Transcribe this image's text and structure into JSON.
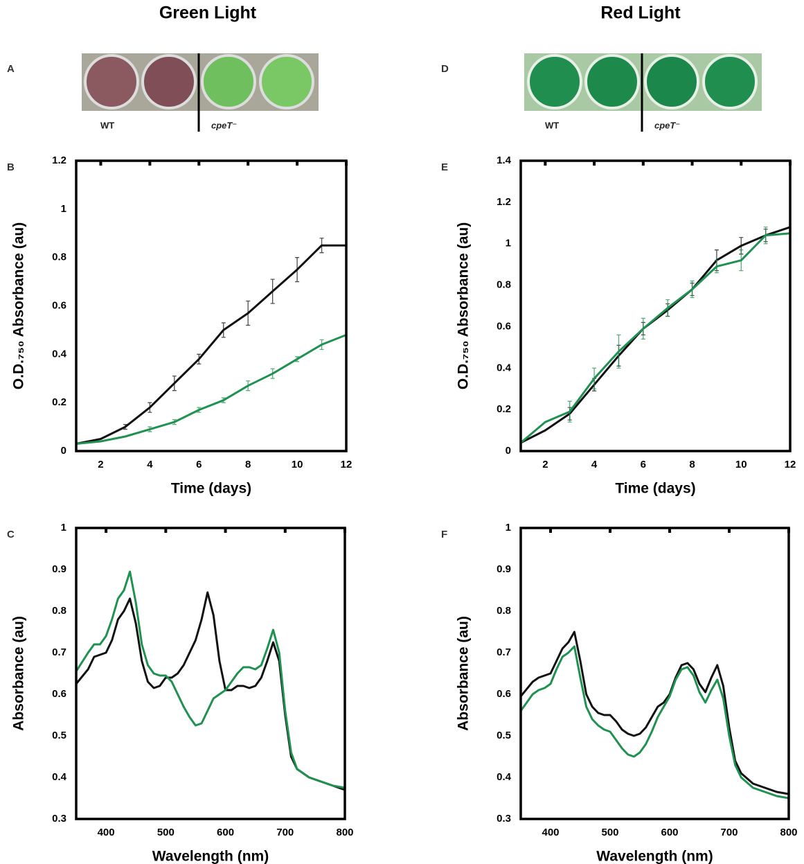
{
  "figure": {
    "columns": [
      "Green Light",
      "Red Light"
    ],
    "panels": [
      "A",
      "B",
      "C",
      "D",
      "E",
      "F"
    ],
    "photos": [
      {
        "labels": [
          "WT",
          "cpeT⁻"
        ]
      },
      {
        "labels": [
          "WT",
          "cpeT⁻"
        ]
      }
    ]
  },
  "chart_data": [
    {
      "type": "line",
      "xlabel": "Time (days)",
      "ylabel": "O.D.₇₅₀ Absorbance (au)",
      "x": [
        1,
        2,
        3,
        4,
        5,
        6,
        7,
        8,
        9,
        10,
        11,
        12
      ],
      "series": [
        {
          "color": "#111111",
          "values": [
            0.03,
            0.05,
            0.1,
            0.18,
            0.28,
            0.38,
            0.5,
            0.57,
            0.66,
            0.75,
            0.85,
            0.85
          ],
          "errors": [
            null,
            null,
            0.01,
            0.02,
            0.03,
            0.02,
            0.03,
            0.05,
            0.05,
            0.05,
            0.03,
            null
          ]
        },
        {
          "color": "#1f9150",
          "values": [
            0.03,
            0.04,
            0.06,
            0.09,
            0.12,
            0.17,
            0.21,
            0.27,
            0.32,
            0.38,
            0.44,
            0.48
          ],
          "errors": [
            null,
            null,
            null,
            0.01,
            0.01,
            0.01,
            0.01,
            0.02,
            0.02,
            0.01,
            0.02,
            null
          ]
        }
      ],
      "xlim": [
        1,
        12
      ],
      "ylim": [
        0,
        1.2
      ],
      "xticks": [
        2,
        4,
        6,
        8,
        10,
        12
      ],
      "yticks": [
        0,
        0.2,
        0.4,
        0.6,
        0.8,
        1,
        1.2
      ]
    },
    {
      "type": "line",
      "xlabel": "Time (days)",
      "ylabel": "O.D.₇₅₀ Absorbance (au)",
      "x": [
        1,
        2,
        3,
        4,
        5,
        6,
        7,
        8,
        9,
        10,
        11,
        12
      ],
      "series": [
        {
          "color": "#111111",
          "values": [
            0.04,
            0.1,
            0.18,
            0.32,
            0.46,
            0.59,
            0.68,
            0.78,
            0.92,
            0.99,
            1.04,
            1.08
          ],
          "errors": [
            null,
            null,
            0.03,
            0.03,
            0.05,
            0.03,
            0.03,
            0.03,
            0.05,
            0.04,
            0.03,
            null
          ]
        },
        {
          "color": "#1f9150",
          "values": [
            0.04,
            0.14,
            0.19,
            0.35,
            0.48,
            0.59,
            0.69,
            0.78,
            0.89,
            0.92,
            1.04,
            1.05
          ],
          "errors": [
            null,
            null,
            0.05,
            0.05,
            0.08,
            0.05,
            0.04,
            0.04,
            0.03,
            0.05,
            0.04,
            null
          ]
        }
      ],
      "xlim": [
        1,
        12
      ],
      "ylim": [
        0,
        1.4
      ],
      "xticks": [
        2,
        4,
        6,
        8,
        10,
        12
      ],
      "yticks": [
        0,
        0.2,
        0.4,
        0.6,
        0.8,
        1,
        1.2,
        1.4
      ]
    },
    {
      "type": "line",
      "xlabel": "Wavelength (nm)",
      "ylabel": "Absorbance (au)",
      "x": [
        350,
        370,
        380,
        390,
        400,
        410,
        420,
        430,
        440,
        450,
        460,
        470,
        480,
        490,
        500,
        510,
        520,
        530,
        540,
        550,
        560,
        570,
        580,
        590,
        600,
        610,
        620,
        630,
        640,
        650,
        660,
        670,
        680,
        690,
        700,
        710,
        720,
        740,
        760,
        780,
        800
      ],
      "series": [
        {
          "color": "#111111",
          "values": [
            0.625,
            0.66,
            0.69,
            0.695,
            0.7,
            0.73,
            0.78,
            0.8,
            0.83,
            0.77,
            0.68,
            0.63,
            0.615,
            0.62,
            0.64,
            0.64,
            0.65,
            0.67,
            0.7,
            0.73,
            0.78,
            0.845,
            0.79,
            0.68,
            0.61,
            0.61,
            0.62,
            0.62,
            0.615,
            0.62,
            0.64,
            0.68,
            0.725,
            0.68,
            0.55,
            0.45,
            0.42,
            0.4,
            0.39,
            0.38,
            0.37
          ]
        },
        {
          "color": "#1f9150",
          "values": [
            0.655,
            0.7,
            0.72,
            0.72,
            0.74,
            0.78,
            0.83,
            0.85,
            0.895,
            0.82,
            0.72,
            0.67,
            0.65,
            0.645,
            0.645,
            0.63,
            0.6,
            0.57,
            0.545,
            0.525,
            0.53,
            0.56,
            0.59,
            0.6,
            0.61,
            0.63,
            0.65,
            0.665,
            0.665,
            0.66,
            0.67,
            0.71,
            0.755,
            0.7,
            0.56,
            0.46,
            0.42,
            0.4,
            0.39,
            0.38,
            0.375
          ]
        }
      ],
      "xlim": [
        350,
        800
      ],
      "ylim": [
        0.3,
        1
      ],
      "xticks": [
        400,
        500,
        600,
        700,
        800
      ],
      "yticks": [
        0.3,
        0.4,
        0.5,
        0.6,
        0.7,
        0.8,
        0.9,
        1
      ]
    },
    {
      "type": "line",
      "xlabel": "Wavelength (nm)",
      "ylabel": "Absorbance (au)",
      "x": [
        350,
        370,
        380,
        390,
        400,
        410,
        420,
        430,
        440,
        450,
        460,
        470,
        480,
        490,
        500,
        510,
        520,
        530,
        540,
        550,
        560,
        570,
        580,
        590,
        600,
        610,
        620,
        630,
        640,
        650,
        660,
        670,
        680,
        690,
        700,
        710,
        720,
        740,
        760,
        780,
        800
      ],
      "series": [
        {
          "color": "#111111",
          "values": [
            0.595,
            0.63,
            0.64,
            0.645,
            0.65,
            0.68,
            0.71,
            0.725,
            0.75,
            0.68,
            0.6,
            0.57,
            0.555,
            0.55,
            0.55,
            0.535,
            0.515,
            0.505,
            0.5,
            0.505,
            0.52,
            0.545,
            0.57,
            0.58,
            0.6,
            0.64,
            0.67,
            0.675,
            0.66,
            0.625,
            0.605,
            0.64,
            0.67,
            0.62,
            0.52,
            0.44,
            0.41,
            0.385,
            0.375,
            0.365,
            0.36
          ]
        },
        {
          "color": "#1f9150",
          "values": [
            0.56,
            0.6,
            0.61,
            0.615,
            0.625,
            0.66,
            0.69,
            0.7,
            0.715,
            0.64,
            0.57,
            0.54,
            0.525,
            0.515,
            0.51,
            0.49,
            0.47,
            0.455,
            0.45,
            0.46,
            0.48,
            0.51,
            0.545,
            0.57,
            0.595,
            0.635,
            0.66,
            0.665,
            0.645,
            0.605,
            0.58,
            0.61,
            0.635,
            0.59,
            0.5,
            0.43,
            0.4,
            0.375,
            0.365,
            0.355,
            0.35
          ]
        }
      ],
      "xlim": [
        350,
        800
      ],
      "ylim": [
        0.3,
        1
      ],
      "xticks": [
        400,
        500,
        600,
        700,
        800
      ],
      "yticks": [
        0.3,
        0.4,
        0.5,
        0.6,
        0.7,
        0.8,
        0.9,
        1
      ]
    }
  ]
}
